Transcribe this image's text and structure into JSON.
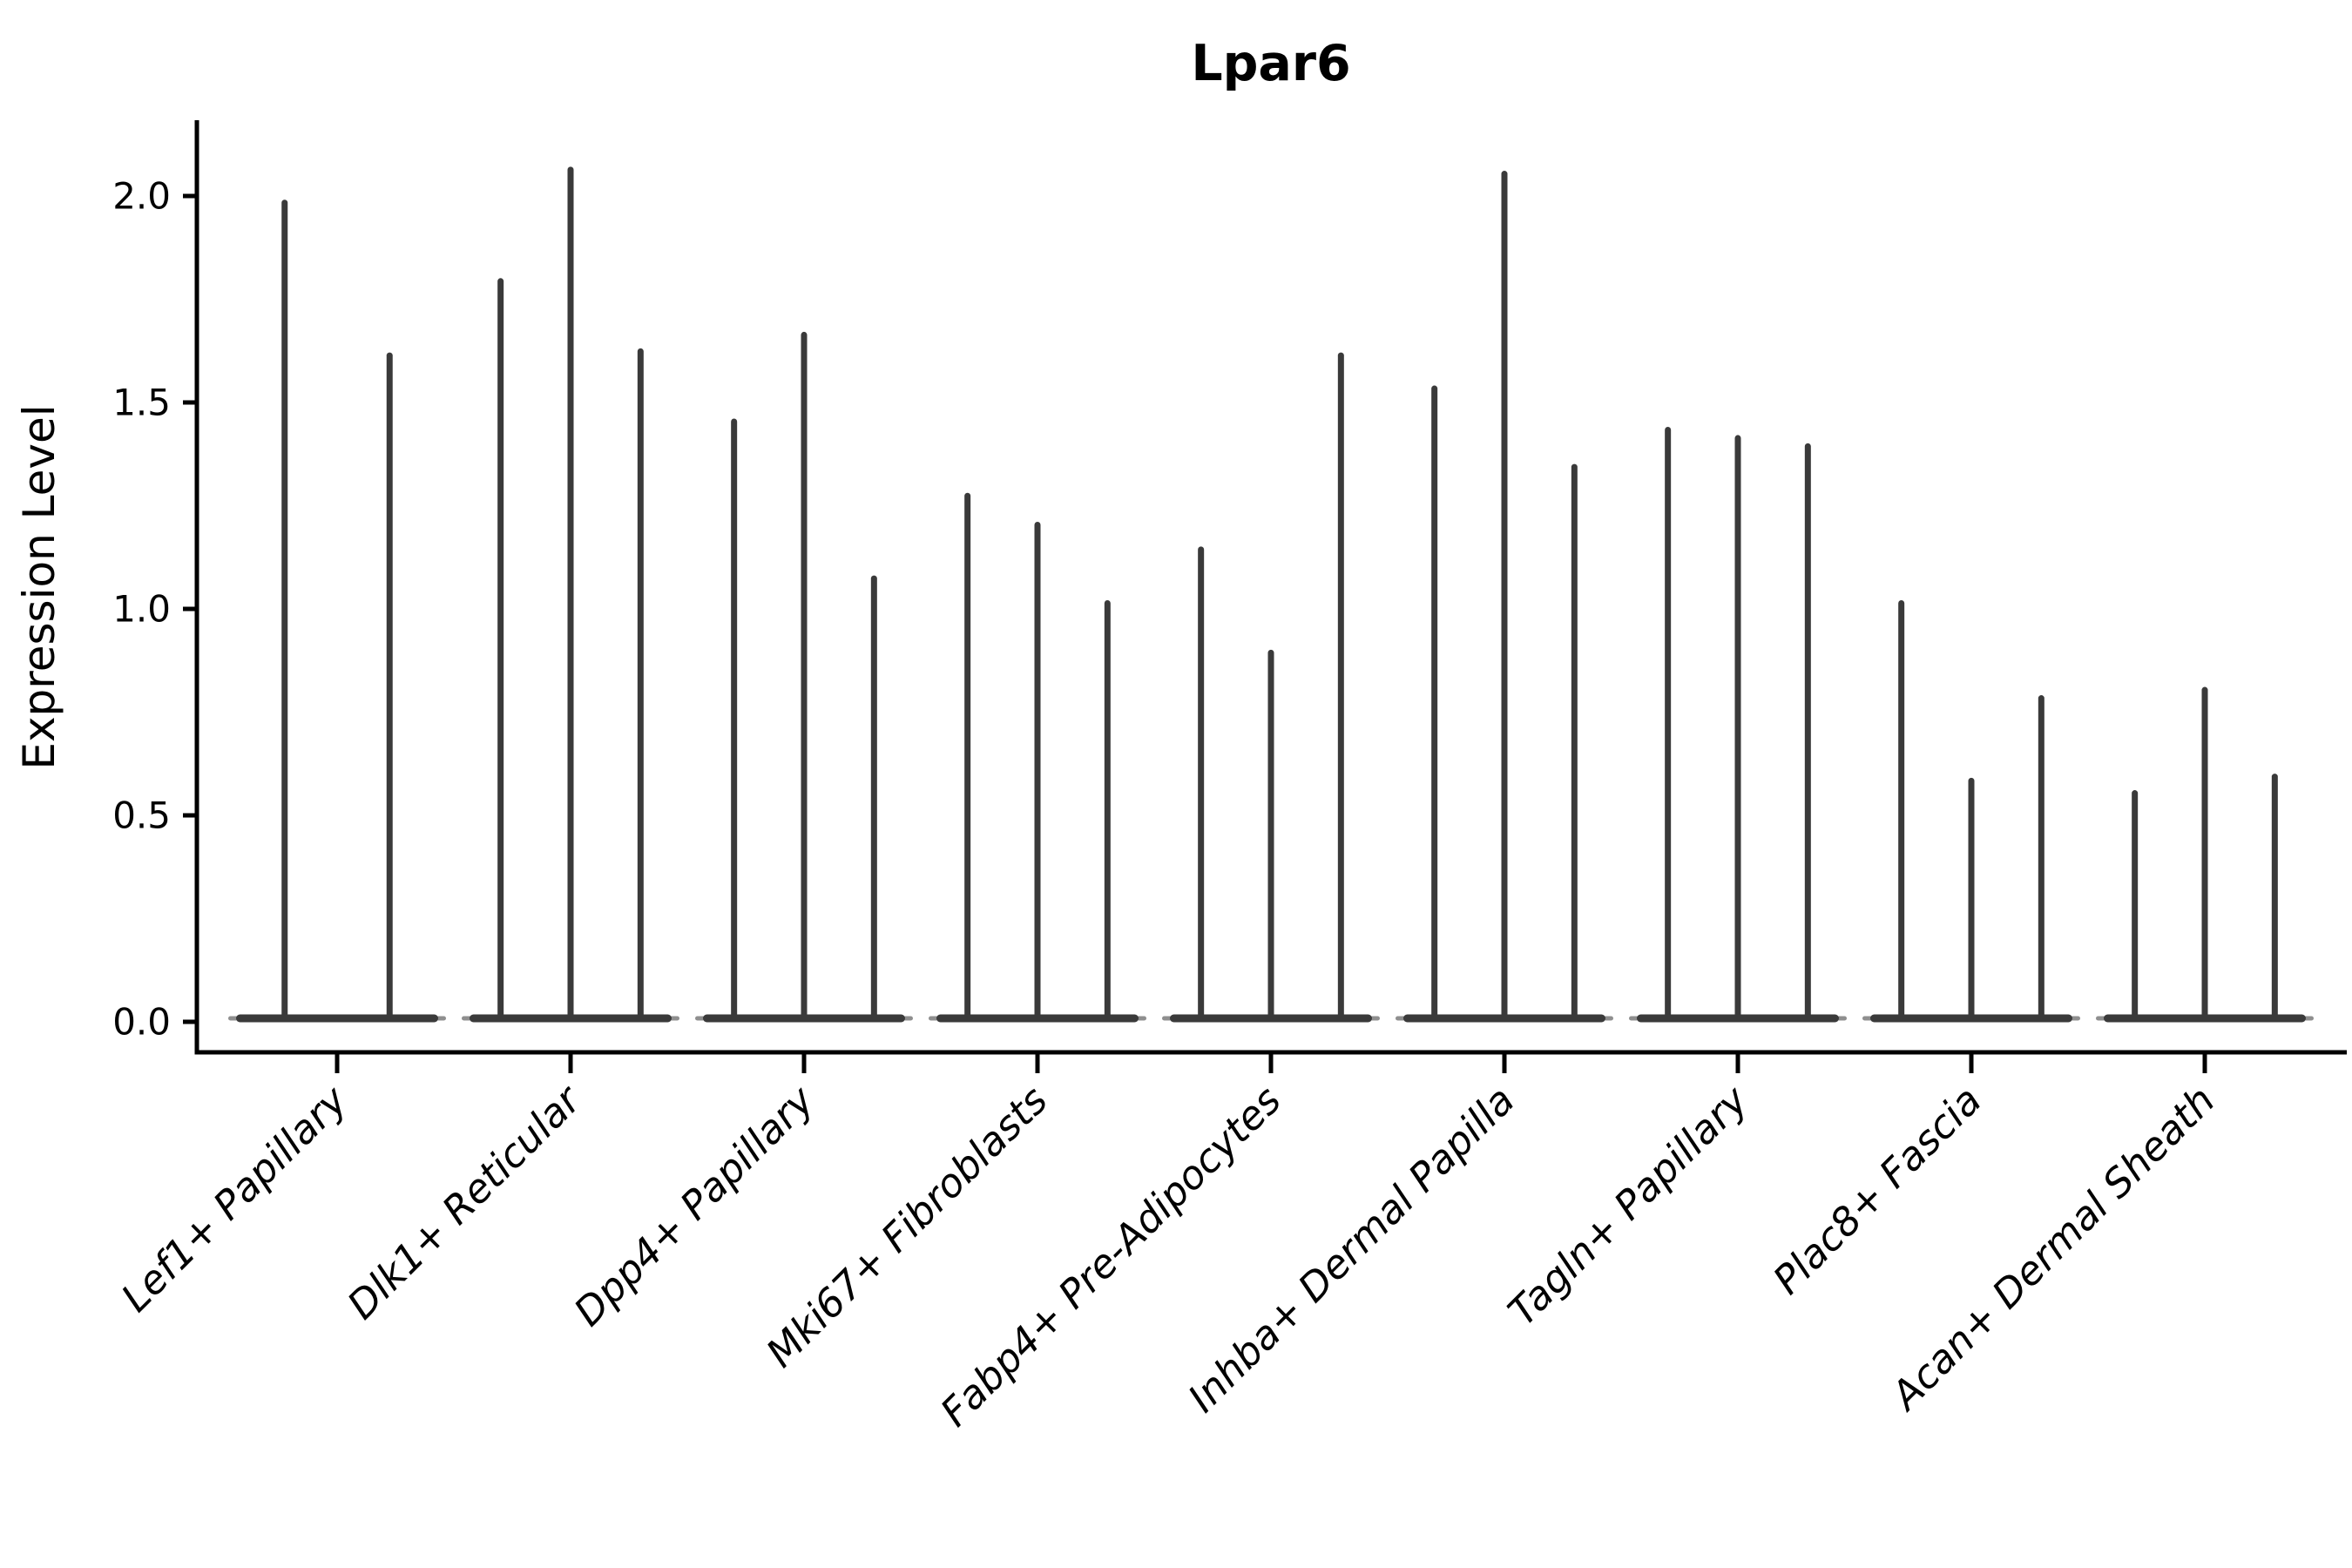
{
  "page": {
    "background": "#ffffff"
  },
  "chart_data": {
    "type": "violin",
    "title": "Lpar6",
    "ylabel": "Expression Level",
    "xlabel": "",
    "ylim": [
      0,
      2.2
    ],
    "ytick_values": [
      0.0,
      0.5,
      1.0,
      1.5,
      2.0
    ],
    "ytick_labels": [
      "0.0",
      "0.5",
      "1.0",
      "1.5",
      "2.0"
    ],
    "grid": false,
    "legend": "none",
    "label_rotation_deg": 45,
    "style": {
      "violin_color": "#3a3a3a",
      "violin_tip_color": "#8f8f8f",
      "axis_color": "#000000",
      "text_color": "#000000",
      "background": "#ffffff"
    },
    "categories": [
      "Lef1+ Papillary",
      "Dlk1+ Reticular",
      "Dpp4+ Papillary",
      "Mki67+ Fibroblasts",
      "Fabp4+ Pre-Adipocytes",
      "Inhba+ Dermal Papilla",
      "Tagln+ Papillary",
      "Plac8+ Fascia",
      "Acan+ Dermal Sheath"
    ],
    "groups": [
      {
        "category": "Lef1+ Papillary",
        "violin_maxima": [
          1.99,
          1.62
        ]
      },
      {
        "category": "Dlk1+ Reticular",
        "violin_maxima": [
          1.8,
          2.07,
          1.63
        ]
      },
      {
        "category": "Dpp4+ Papillary",
        "violin_maxima": [
          1.46,
          1.67,
          1.08
        ]
      },
      {
        "category": "Mki67+ Fibroblasts",
        "violin_maxima": [
          1.28,
          1.21,
          1.02
        ]
      },
      {
        "category": "Fabp4+ Pre-Adipocytes",
        "violin_maxima": [
          1.15,
          0.9,
          1.62
        ]
      },
      {
        "category": "Inhba+ Dermal Papilla",
        "violin_maxima": [
          1.54,
          2.06,
          1.35
        ]
      },
      {
        "category": "Tagln+ Papillary",
        "violin_maxima": [
          1.44,
          1.42,
          1.4
        ]
      },
      {
        "category": "Plac8+ Fascia",
        "violin_maxima": [
          1.02,
          0.59,
          0.79
        ]
      },
      {
        "category": "Acan+ Dermal Sheath",
        "violin_maxima": [
          0.56,
          0.81,
          0.6
        ]
      }
    ],
    "shape_note": "needle-thin violins: density mass concentrated at 0 (flat horizontal lens at baseline) with a thin spike up to each violin's maximum expression value"
  }
}
